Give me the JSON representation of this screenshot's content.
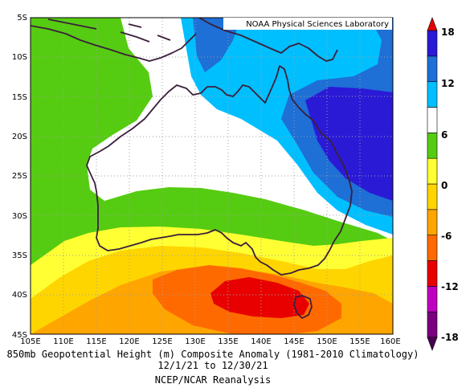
{
  "credit": "NOAA Physical Sciences Laboratory",
  "caption": {
    "line1": "850mb Geopotential Height (m) Composite Anomaly (1981-2010 Climatology)",
    "line2": "12/1/21 to 12/30/21",
    "line3": "NCEP/NCAR Reanalysis"
  },
  "map": {
    "lon_range": [
      105,
      160
    ],
    "lat_range": [
      -45,
      -5
    ],
    "lon_ticks": [
      "105E",
      "110E",
      "115E",
      "120E",
      "125E",
      "130E",
      "135E",
      "140E",
      "145E",
      "150E",
      "155E",
      "160E"
    ],
    "lat_ticks": [
      "5S",
      "10S",
      "15S",
      "20S",
      "25S",
      "30S",
      "35S",
      "40S",
      "45S"
    ],
    "grid": true,
    "region": "Australia"
  },
  "colorbar": {
    "labels": [
      "18",
      "12",
      "6",
      "0",
      "-6",
      "-12",
      "-18"
    ],
    "colors": [
      "#7a0080",
      "#c000c0",
      "#e80000",
      "#ff6a00",
      "#ffa500",
      "#ffd500",
      "#ffff33",
      "#55cc11",
      "#ffffff",
      "#00bfff",
      "#1e6fd6",
      "#2a1ad6"
    ]
  }
}
